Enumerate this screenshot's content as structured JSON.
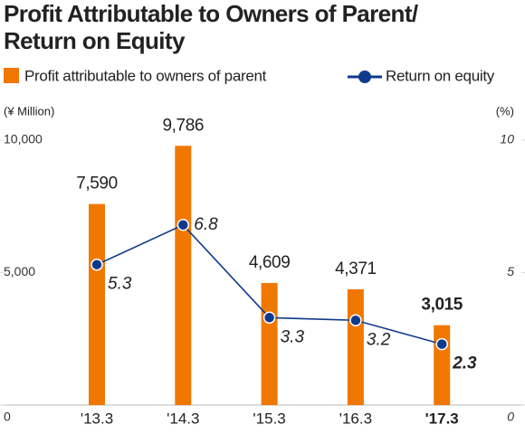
{
  "chart_data": {
    "type": "bar-line",
    "title": [
      "Profit Attributable to Owners of Parent/",
      "Return on Equity"
    ],
    "y_label": "(¥ Million)",
    "y2_label": "(%)",
    "categories": [
      "'13.3",
      "'14.3",
      "'15.3",
      "'16.3",
      "'17.3"
    ],
    "series": [
      {
        "name": "Profit attributable to owners of parent",
        "type": "bar",
        "color": "#f07800",
        "values": [
          7590,
          9786,
          4609,
          4371,
          3015
        ],
        "value_labels": [
          "7,590",
          "9,786",
          "4,609",
          "4,371",
          "3,015"
        ]
      },
      {
        "name": "Return on equity",
        "type": "line",
        "axis": "y2",
        "color": "#0f3a8c",
        "values": [
          5.3,
          6.8,
          3.3,
          3.2,
          2.3
        ]
      }
    ],
    "ylim": [
      0,
      10000
    ],
    "yticks": [
      0,
      {
        "value": 5000,
        "label": "5,000"
      },
      {
        "value": 10000,
        "label": "10,000"
      }
    ],
    "y2lim": [
      0,
      10
    ],
    "y2ticks": [
      0,
      5,
      10
    ],
    "highlight_last": true
  }
}
